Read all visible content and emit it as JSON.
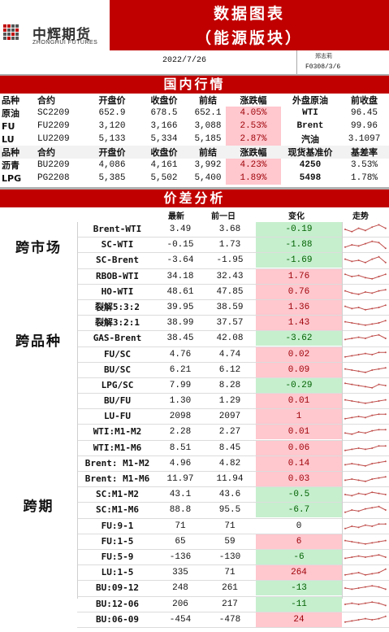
{
  "header": {
    "logo_cn": "中辉期货",
    "logo_en": "ZHONGHUI FUTURES",
    "title_line1": "数据图表",
    "title_line2": "（能源版块）",
    "date": "2022/7/26",
    "author": "郑志莉",
    "license": "F0308/3/6"
  },
  "domestic": {
    "banner": "国内行情",
    "header1": [
      "品种",
      "合约",
      "开盘价",
      "收盘价",
      "前结",
      "涨跌幅",
      "外盘原油",
      "前收盘"
    ],
    "rows1": [
      {
        "name": "原油",
        "contract": "SC2209",
        "open": "652.9",
        "close": "678.5",
        "prev": "652.1",
        "chg": "4.05%",
        "ext": "WTI",
        "ext_val": "96.45"
      },
      {
        "name": "FU",
        "contract": "FU2209",
        "open": "3,120",
        "close": "3,166",
        "prev": "3,088",
        "chg": "2.53%",
        "ext": "Brent",
        "ext_val": "99.96"
      },
      {
        "name": "LU",
        "contract": "LU2209",
        "open": "5,133",
        "close": "5,334",
        "prev": "5,185",
        "chg": "2.87%",
        "ext": "汽油",
        "ext_val": "3.1097"
      }
    ],
    "header2": [
      "品种",
      "合约",
      "开盘价",
      "收盘价",
      "前结",
      "涨跌幅",
      "现货基准价",
      "基差率"
    ],
    "rows2": [
      {
        "name": "沥青",
        "contract": "BU2209",
        "open": "4,086",
        "close": "4,161",
        "prev": "3,992",
        "chg": "4.23%",
        "ext": "4250",
        "ext_val": "3.53%"
      },
      {
        "name": "LPG",
        "contract": "PG2208",
        "open": "5,385",
        "close": "5,502",
        "prev": "5,400",
        "chg": "1.89%",
        "ext": "5498",
        "ext_val": "1.78%"
      }
    ]
  },
  "spread": {
    "banner": "价差分析",
    "columns": {
      "latest": "最新",
      "prev": "前一日",
      "change": "变化",
      "trend": "走势"
    },
    "categories": {
      "cross_market": "跨市场",
      "cross_variety": "跨品种",
      "cross_period": "跨期"
    },
    "rows": [
      {
        "name": "Brent-WTI",
        "latest": "3.49",
        "prev": "3.68",
        "change": "-0.19",
        "dir": "down",
        "trend": [
          0.5,
          0.3,
          0.6,
          0.4,
          0.7,
          0.9,
          0.6
        ]
      },
      {
        "name": "SC-WTI",
        "latest": "-0.15",
        "prev": "1.73",
        "change": "-1.88",
        "dir": "down",
        "trend": [
          0.3,
          0.5,
          0.4,
          0.6,
          0.8,
          0.7,
          0.2
        ]
      },
      {
        "name": "SC-Brent",
        "latest": "-3.64",
        "prev": "-1.95",
        "change": "-1.69",
        "dir": "down",
        "trend": [
          0.6,
          0.4,
          0.5,
          0.3,
          0.6,
          0.8,
          0.3
        ]
      },
      {
        "name": "RBOB-WTI",
        "latest": "34.18",
        "prev": "32.43",
        "change": "1.76",
        "dir": "up",
        "trend": [
          0.7,
          0.5,
          0.6,
          0.4,
          0.3,
          0.5,
          0.7
        ]
      },
      {
        "name": "HO-WTI",
        "latest": "48.61",
        "prev": "47.85",
        "change": "0.76",
        "dir": "up",
        "trend": [
          0.6,
          0.4,
          0.3,
          0.5,
          0.4,
          0.6,
          0.7
        ]
      },
      {
        "name": "裂解5:3:2",
        "latest": "39.95",
        "prev": "38.59",
        "change": "1.36",
        "dir": "up",
        "trend": [
          0.6,
          0.4,
          0.5,
          0.3,
          0.4,
          0.5,
          0.7
        ]
      },
      {
        "name": "裂解3:2:1",
        "latest": "38.99",
        "prev": "37.57",
        "change": "1.43",
        "dir": "up",
        "trend": [
          0.6,
          0.5,
          0.4,
          0.3,
          0.4,
          0.5,
          0.7
        ]
      },
      {
        "name": "GAS-Brent",
        "latest": "38.45",
        "prev": "42.08",
        "change": "-3.62",
        "dir": "down",
        "trend": [
          0.4,
          0.5,
          0.6,
          0.5,
          0.7,
          0.8,
          0.5
        ]
      },
      {
        "name": "FU/SC",
        "latest": "4.76",
        "prev": "4.74",
        "change": "0.02",
        "dir": "up",
        "trend": [
          0.3,
          0.4,
          0.5,
          0.6,
          0.5,
          0.7,
          0.7
        ]
      },
      {
        "name": "BU/SC",
        "latest": "6.21",
        "prev": "6.12",
        "change": "0.09",
        "dir": "up",
        "trend": [
          0.6,
          0.5,
          0.4,
          0.3,
          0.5,
          0.6,
          0.7
        ]
      },
      {
        "name": "LPG/SC",
        "latest": "7.99",
        "prev": "8.28",
        "change": "-0.29",
        "dir": "down",
        "trend": [
          0.7,
          0.6,
          0.5,
          0.4,
          0.3,
          0.6,
          0.5
        ]
      },
      {
        "name": "BU/FU",
        "latest": "1.30",
        "prev": "1.29",
        "change": "0.01",
        "dir": "up",
        "trend": [
          0.6,
          0.5,
          0.4,
          0.3,
          0.4,
          0.5,
          0.6
        ]
      },
      {
        "name": "LU-FU",
        "latest": "2098",
        "prev": "2097",
        "change": "1",
        "dir": "up",
        "trend": [
          0.3,
          0.4,
          0.5,
          0.4,
          0.6,
          0.7,
          0.7
        ]
      },
      {
        "name": "WTI:M1-M2",
        "latest": "2.28",
        "prev": "2.27",
        "change": "0.01",
        "dir": "up",
        "trend": [
          0.4,
          0.3,
          0.5,
          0.4,
          0.6,
          0.7,
          0.7
        ]
      },
      {
        "name": "WTI:M1-M6",
        "latest": "8.51",
        "prev": "8.45",
        "change": "0.06",
        "dir": "up",
        "trend": [
          0.3,
          0.4,
          0.5,
          0.4,
          0.5,
          0.7,
          0.7
        ]
      },
      {
        "name": "Brent: M1-M2",
        "latest": "4.96",
        "prev": "4.82",
        "change": "0.14",
        "dir": "up",
        "trend": [
          0.4,
          0.5,
          0.4,
          0.3,
          0.5,
          0.6,
          0.7
        ]
      },
      {
        "name": "Brent: M1-M6",
        "latest": "11.97",
        "prev": "11.94",
        "change": "0.03",
        "dir": "up",
        "trend": [
          0.4,
          0.5,
          0.4,
          0.3,
          0.5,
          0.6,
          0.7
        ]
      },
      {
        "name": "SC:M1-M2",
        "latest": "43.1",
        "prev": "43.6",
        "change": "-0.5",
        "dir": "down",
        "trend": [
          0.5,
          0.4,
          0.6,
          0.5,
          0.7,
          0.6,
          0.5
        ]
      },
      {
        "name": "SC:M1-M6",
        "latest": "88.8",
        "prev": "95.5",
        "change": "-6.7",
        "dir": "down",
        "trend": [
          0.3,
          0.5,
          0.4,
          0.6,
          0.7,
          0.8,
          0.5
        ]
      },
      {
        "name": "FU:9-1",
        "latest": "71",
        "prev": "71",
        "change": "0",
        "dir": "zero",
        "trend": [
          0.3,
          0.5,
          0.4,
          0.6,
          0.5,
          0.7,
          0.7
        ]
      },
      {
        "name": "FU:1-5",
        "latest": "65",
        "prev": "59",
        "change": "6",
        "dir": "up",
        "trend": [
          0.6,
          0.5,
          0.4,
          0.3,
          0.4,
          0.5,
          0.6
        ]
      },
      {
        "name": "FU:5-9",
        "latest": "-136",
        "prev": "-130",
        "change": "-6",
        "dir": "down",
        "trend": [
          0.4,
          0.5,
          0.6,
          0.5,
          0.6,
          0.7,
          0.5
        ]
      },
      {
        "name": "LU:1-5",
        "latest": "335",
        "prev": "71",
        "change": "264",
        "dir": "up",
        "trend": [
          0.3,
          0.4,
          0.5,
          0.3,
          0.4,
          0.5,
          0.8
        ]
      },
      {
        "name": "BU:09-12",
        "latest": "248",
        "prev": "261",
        "change": "-13",
        "dir": "down",
        "trend": [
          0.5,
          0.4,
          0.5,
          0.6,
          0.7,
          0.6,
          0.4
        ]
      },
      {
        "name": "BU:12-06",
        "latest": "206",
        "prev": "217",
        "change": "-11",
        "dir": "down",
        "trend": [
          0.5,
          0.6,
          0.5,
          0.6,
          0.7,
          0.6,
          0.4
        ]
      },
      {
        "name": "BU:06-09",
        "latest": "-454",
        "prev": "-478",
        "change": "24",
        "dir": "up",
        "trend": [
          0.3,
          0.4,
          0.5,
          0.6,
          0.5,
          0.6,
          0.8
        ]
      }
    ]
  },
  "colors": {
    "accent": "#c00000",
    "up_bg": "#ffc7ce",
    "down_bg": "#c6efce",
    "sparkline": "#c0504d"
  }
}
